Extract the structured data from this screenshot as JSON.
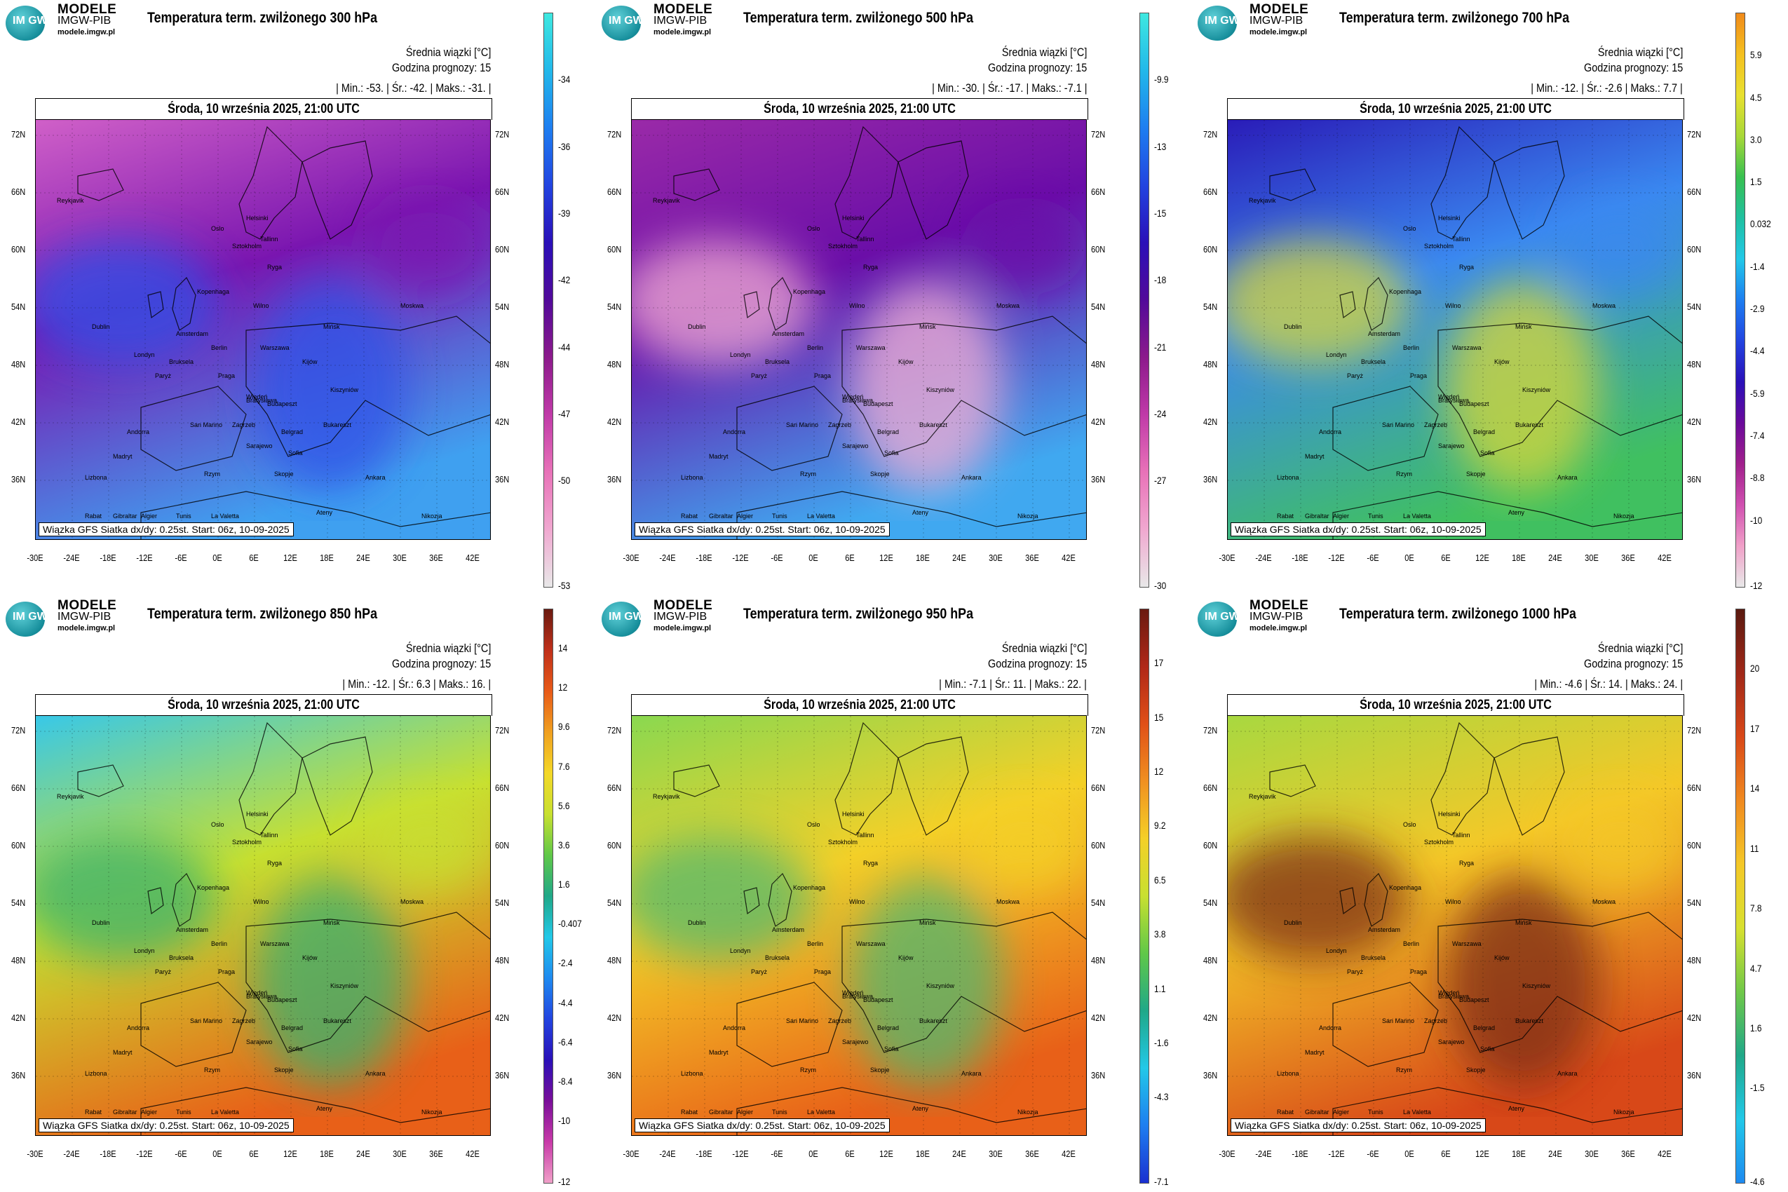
{
  "brand": {
    "line1": "MODELE",
    "line2": "IMGW-PIB",
    "line3": "modele.imgw.pl",
    "logo_text": "IM GW"
  },
  "common": {
    "avg_label": "Średnia wiązki [°C]",
    "forecast_hour": "Godzina prognozy: 15",
    "date": "Środa, 10 września 2025, 21:00 UTC",
    "footer": "Wiązka GFS Siatka dx/dy: 0.25st. Start: 06z, 10-09-2025",
    "lat_labels": [
      "72N",
      "66N",
      "60N",
      "54N",
      "48N",
      "42N",
      "36N"
    ],
    "lon_labels": [
      "-30E",
      "-24E",
      "-18E",
      "-12E",
      "-6E",
      "0E",
      "6E",
      "12E",
      "18E",
      "24E",
      "30E",
      "36E",
      "42E"
    ],
    "cities": [
      "Oslo",
      "Helsinki",
      "Sztokholm",
      "Tallinn",
      "Ryga",
      "Kopenhaga",
      "Wilno",
      "Berlin",
      "Warszawa",
      "Amsterdam",
      "Londyn",
      "Bruksela",
      "Paryż",
      "Praga",
      "Wiedeń",
      "Kijów",
      "Bratysława",
      "Budapeszt",
      "Zagrzeb",
      "Belgrad",
      "Bukareszt",
      "San Marino",
      "Sarajewo",
      "Sofia",
      "Rzym",
      "Skopje",
      "Andorra",
      "Madryt",
      "Lizbona",
      "Gibraltar",
      "Tunis",
      "Algier",
      "Rabat",
      "La Valetta",
      "Ateny",
      "Ankara",
      "Nikozja",
      "Kiszyniów",
      "Dublin",
      "Reykjavik",
      "Mińsk",
      "Moskwa"
    ]
  },
  "panels": [
    {
      "title": "Temperatura term. zwilżonego 300 hPa",
      "stats": "| Min.:  -53. | Śr.:  -42. | Maks.:  -31. |",
      "colorbar": {
        "ticks": [
          "-34",
          "-36",
          "-39",
          "-42",
          "-44",
          "-47",
          "-50",
          "-53"
        ],
        "colors": [
          "#3ee8e0",
          "#22b8ea",
          "#1e7ef0",
          "#2244e0",
          "#2a10b8",
          "#520a9a",
          "#8c1a8c",
          "#c03aa8",
          "#e872b8",
          "#f0a8d0",
          "#e8e8e8"
        ]
      },
      "map_palette": {
        "north": "#d060c8",
        "mid": "#7a16b0",
        "south": "#3fa0f0",
        "accent": "#2f52e8"
      }
    },
    {
      "title": "Temperatura term. zwilżonego 500 hPa",
      "stats": "| Min.:  -30. | Śr.:  -17. | Maks.:  -7.1 |",
      "colorbar": {
        "ticks": [
          "-9.9",
          "-13",
          "-15",
          "-18",
          "-21",
          "-24",
          "-27",
          "-30"
        ],
        "colors": [
          "#3ee8e0",
          "#22b8ea",
          "#1e7ef0",
          "#2244e0",
          "#2a10b8",
          "#520a9a",
          "#8c1a8c",
          "#c03aa8",
          "#e872b8",
          "#f0a8d0",
          "#e8e8e8"
        ]
      },
      "map_palette": {
        "north": "#9a2aa8",
        "mid": "#6a0ea8",
        "south": "#40a8f0",
        "accent": "#f4b0d4"
      }
    },
    {
      "title": "Temperatura term. zwilżonego 700 hPa",
      "stats": "| Min.:  -12. | Śr.:  -2.6 | Maks.:  7.7 |",
      "colorbar": {
        "ticks": [
          "5.9",
          "4.5",
          "3.0",
          "1.5",
          "0.032",
          "-1.4",
          "-2.9",
          "-4.4",
          "-5.9",
          "-7.4",
          "-8.8",
          "-10",
          "-12"
        ],
        "colors": [
          "#f08a1a",
          "#f4c020",
          "#e8e030",
          "#a8d838",
          "#38c050",
          "#20c0a0",
          "#22c8e8",
          "#1e7ef0",
          "#2244e0",
          "#2a10b8",
          "#6a0a9a",
          "#a0208c",
          "#d050b0",
          "#f0a0c8",
          "#e8e8e8"
        ]
      },
      "map_palette": {
        "north": "#2a1cb8",
        "mid": "#3a88f0",
        "south": "#40c060",
        "accent": "#d8d838"
      }
    },
    {
      "title": "Temperatura term. zwilżonego 850 hPa",
      "stats": "| Min.:  -12. | Śr.:  6.3 | Maks.:  16. |",
      "colorbar": {
        "ticks": [
          "14",
          "12",
          "9.6",
          "7.6",
          "5.6",
          "3.6",
          "1.6",
          "-0.407",
          "-2.4",
          "-4.4",
          "-6.4",
          "-8.4",
          "-10",
          "-12"
        ],
        "colors": [
          "#6a1a10",
          "#c0301a",
          "#e85a18",
          "#f0a020",
          "#f4d828",
          "#c8e030",
          "#60c848",
          "#20a888",
          "#22c8e8",
          "#1e8af0",
          "#2244e0",
          "#2a10b8",
          "#7a0e9a",
          "#c83aa8",
          "#f0a0c8"
        ]
      },
      "map_palette": {
        "north": "#38c8e8",
        "mid": "#c8e030",
        "south": "#e86018",
        "accent": "#38b070"
      }
    },
    {
      "title": "Temperatura term. zwilżonego 950 hPa",
      "stats": "| Min.:  -7.1 | Śr.:  11. | Maks.:  22. |",
      "colorbar": {
        "ticks": [
          "17",
          "15",
          "12",
          "9.2",
          "6.5",
          "3.8",
          "1.1",
          "-1.6",
          "-4.3",
          "-7.1"
        ],
        "colors": [
          "#6a1a10",
          "#b02818",
          "#e05018",
          "#f09020",
          "#f4d028",
          "#c8e030",
          "#60c848",
          "#20a888",
          "#22c8e8",
          "#1e7ef0",
          "#1a30d0"
        ]
      },
      "map_palette": {
        "north": "#8ad850",
        "mid": "#f4d028",
        "south": "#e86018",
        "accent": "#50b870"
      }
    },
    {
      "title": "Temperatura term. zwilżonego 1000 hPa",
      "stats": "| Min.:  -4.6 | Śr.:  14. | Maks.:  24. |",
      "colorbar": {
        "ticks": [
          "20",
          "17",
          "14",
          "11",
          "7.8",
          "4.7",
          "1.6",
          "-1.5",
          "-4.6"
        ],
        "colors": [
          "#5a1a10",
          "#a02818",
          "#d84818",
          "#f08a20",
          "#f4c828",
          "#d8e030",
          "#70c848",
          "#20a888",
          "#22c8e8",
          "#1e8af0"
        ]
      },
      "map_palette": {
        "north": "#a8d840",
        "mid": "#f4c828",
        "south": "#d84818",
        "accent": "#7a2a14"
      }
    }
  ]
}
